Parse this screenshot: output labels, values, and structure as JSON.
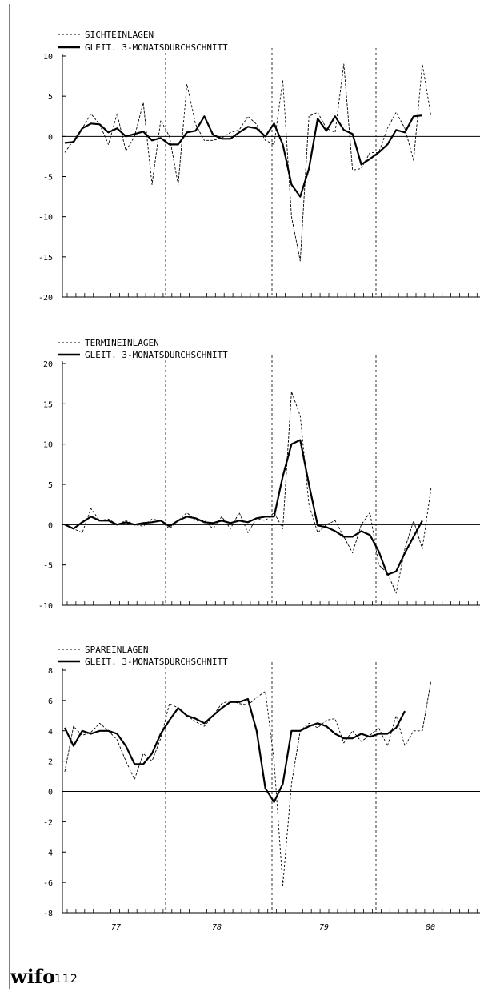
{
  "footer": {
    "logo_text": "wifo",
    "page_number": "112"
  },
  "chart_data": [
    {
      "type": "line",
      "legend": [
        "SICHTEINLAGEN",
        "GLEIT. 3-MONATSDURCHSCHNITT"
      ],
      "ylim": [
        -20,
        10
      ],
      "yticks": [
        "10",
        "5",
        "0",
        "-5",
        "-10",
        "-15",
        "-20"
      ],
      "xtick_labels": [
        "77",
        "78",
        "79",
        "80"
      ],
      "series": [
        {
          "name": "SICHTEINLAGEN",
          "style": "dashed",
          "values": [
            -2,
            -0.5,
            1,
            2.8,
            1.5,
            -1,
            2.8,
            -1.8,
            0,
            4.2,
            -6,
            2,
            0,
            -6,
            6.5,
            1.5,
            -0.5,
            -0.5,
            -0.2,
            0.5,
            0.8,
            2.5,
            1.5,
            -0.5,
            -1,
            7,
            -10,
            -15.5,
            2.5,
            3,
            1,
            0.5,
            9,
            -4.2,
            -4,
            -2,
            -2,
            1,
            3,
            1,
            -3,
            9,
            2.5
          ]
        },
        {
          "name": "GLEIT. 3-MONATSDURCHSCHNITT",
          "style": "solid",
          "values": [
            -0.8,
            -0.7,
            1,
            1.6,
            1.5,
            0.5,
            1,
            0,
            0.3,
            0.6,
            -0.5,
            -0.2,
            -1,
            -1,
            0.5,
            0.7,
            2.5,
            0.2,
            -0.3,
            -0.3,
            0.5,
            1.2,
            1,
            0,
            1.6,
            -1,
            -6,
            -7.5,
            -4,
            2.2,
            0.7,
            2.5,
            0.8,
            0.3,
            -3.5,
            -2.8,
            -2,
            -1,
            0.8,
            0.5,
            2.5,
            2.6
          ]
        }
      ]
    },
    {
      "type": "line",
      "legend": [
        "TERMINEINLAGEN",
        "GLEIT. 3-MONATSDURCHSCHNITT"
      ],
      "ylim": [
        -10,
        20
      ],
      "yticks": [
        "20",
        "15",
        "10",
        "5",
        "0",
        "-5",
        "-10"
      ],
      "xtick_labels": [
        "77",
        "78",
        "79",
        "80"
      ],
      "series": [
        {
          "name": "TERMINEINLAGEN",
          "style": "dashed",
          "values": [
            0,
            -0.5,
            -1,
            2,
            0.5,
            0.7,
            0,
            0.5,
            0,
            -0.2,
            0.7,
            0.5,
            -0.5,
            0.5,
            1.5,
            0.5,
            0.5,
            -0.5,
            1,
            -0.5,
            1.5,
            -1,
            0.8,
            0.5,
            1.5,
            -0.5,
            16.5,
            13.5,
            2.5,
            -1,
            0,
            0.5,
            -1.5,
            -3.5,
            0,
            1.5,
            -5,
            -6,
            -8.5,
            -3,
            0.5,
            -3,
            4.5
          ]
        },
        {
          "name": "GLEIT. 3-MONATSDURCHSCHNITT",
          "style": "solid",
          "values": [
            0,
            -0.5,
            0.3,
            1,
            0.5,
            0.5,
            0,
            0.3,
            0,
            0.2,
            0.3,
            0.5,
            -0.2,
            0.5,
            1,
            0.8,
            0.3,
            0.2,
            0.5,
            0.2,
            0.5,
            0.3,
            0.8,
            1,
            1,
            6,
            10,
            10.5,
            5,
            -0.1,
            -0.3,
            -0.8,
            -1.5,
            -1.5,
            -0.8,
            -1.3,
            -3.3,
            -6.2,
            -5.8,
            -3.5,
            -1.5,
            0.5
          ]
        }
      ]
    },
    {
      "type": "line",
      "legend": [
        "SPAREINLAGEN",
        "GLEIT. 3-MONATSDURCHSCHNITT"
      ],
      "ylim": [
        -8,
        8
      ],
      "yticks": [
        "8",
        "6",
        "4",
        "2",
        "0",
        "-2",
        "-4",
        "-6",
        "-8"
      ],
      "xtick_labels": [
        "77",
        "78",
        "79",
        "80"
      ],
      "series": [
        {
          "name": "SPAREINLAGEN",
          "style": "dashed",
          "values": [
            1.3,
            4.3,
            3.7,
            3.9,
            4.5,
            4,
            3.4,
            2,
            0.8,
            2.5,
            2,
            3.5,
            5.8,
            5.5,
            5,
            4.6,
            4.3,
            5,
            5.8,
            6,
            5.8,
            5.7,
            6.2,
            6.6,
            2,
            -6.2,
            0.5,
            4,
            4.5,
            4.2,
            4.7,
            4.8,
            3.2,
            4,
            3.3,
            3.7,
            4.2,
            3,
            5,
            3,
            4,
            4,
            7.3
          ]
        },
        {
          "name": "GLEIT. 3-MONATSDURCHSCHNITT",
          "style": "solid",
          "values": [
            4.2,
            3,
            4,
            3.8,
            4,
            4,
            3.8,
            3,
            1.8,
            1.8,
            2.5,
            3.8,
            4.7,
            5.5,
            5,
            4.8,
            4.5,
            5,
            5.5,
            5.9,
            5.9,
            6.1,
            4,
            0.2,
            -0.7,
            0.5,
            4,
            4,
            4.3,
            4.5,
            4.3,
            3.8,
            3.5,
            3.5,
            3.8,
            3.6,
            3.8,
            3.8,
            4.2,
            5.3
          ]
        }
      ]
    }
  ]
}
